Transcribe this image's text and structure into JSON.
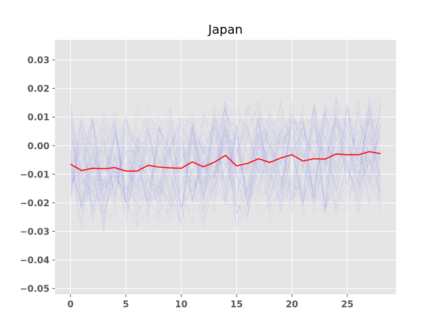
{
  "chart_data": {
    "type": "line",
    "title": "Japan",
    "xlabel": "",
    "ylabel": "",
    "xlim": [
      -1.4,
      29.4
    ],
    "ylim": [
      -0.052,
      0.037
    ],
    "xticks": [
      0,
      5,
      10,
      15,
      20,
      25
    ],
    "xtick_labels": [
      "0",
      "5",
      "10",
      "15",
      "20",
      "25"
    ],
    "yticks": [
      0.03,
      0.02,
      0.01,
      0.0,
      -0.01,
      -0.02,
      -0.03,
      -0.04,
      -0.05
    ],
    "ytick_labels": [
      "0.03",
      "0.02",
      "0.01",
      "0.00",
      "−0.01",
      "−0.02",
      "−0.03",
      "−0.04",
      "−0.05"
    ],
    "grid": true,
    "background_color": "#e5e5e5",
    "grid_color": "#ffffff",
    "background_series_color": "#0000ff",
    "background_series_count": 60,
    "main_series": {
      "color": "#ff0000",
      "x": [
        0,
        1,
        2,
        3,
        4,
        5,
        6,
        7,
        8,
        9,
        10,
        11,
        12,
        13,
        14,
        15,
        16,
        17,
        18,
        19,
        20,
        21,
        22,
        23,
        24,
        25,
        26,
        27,
        28
      ],
      "values": [
        -0.0065,
        -0.0087,
        -0.0079,
        -0.0081,
        -0.0077,
        -0.0089,
        -0.0089,
        -0.0069,
        -0.0075,
        -0.0078,
        -0.0079,
        -0.0057,
        -0.0074,
        -0.0058,
        -0.0034,
        -0.0071,
        -0.0062,
        -0.0046,
        -0.0059,
        -0.0043,
        -0.0032,
        -0.0054,
        -0.0046,
        -0.0047,
        -0.0029,
        -0.0032,
        -0.0032,
        -0.0021,
        -0.0028
      ]
    }
  }
}
